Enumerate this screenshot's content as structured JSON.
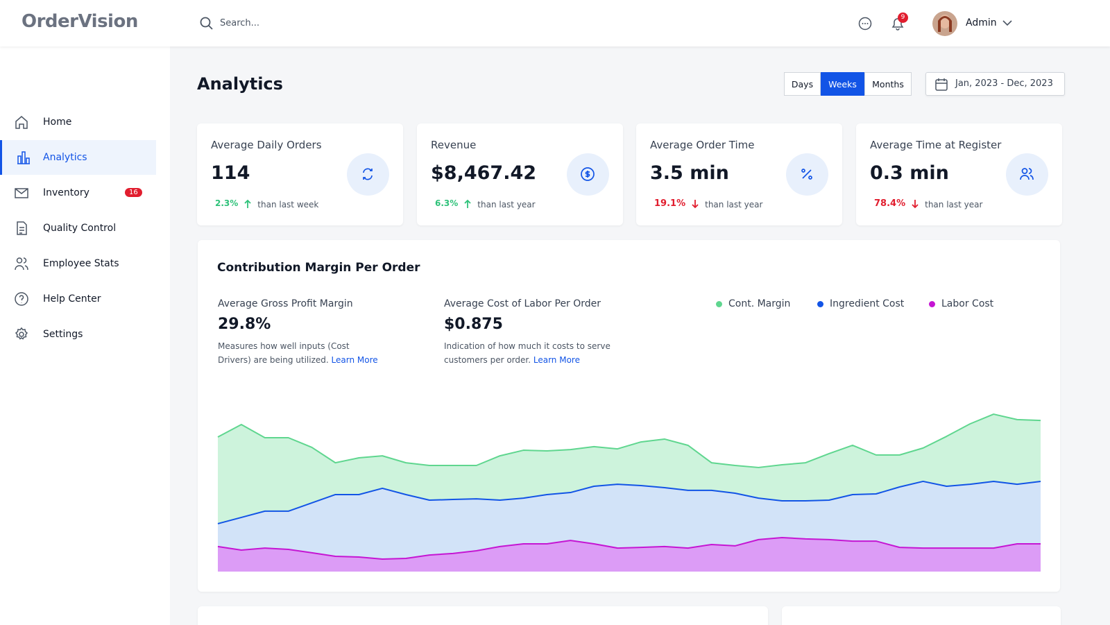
{
  "header": {
    "logo": "OrderVision",
    "search_placeholder": "Search...",
    "notification_count": "9",
    "user": "Admin"
  },
  "sidebar": {
    "items": [
      "Home",
      "Analytics",
      "Inventory",
      "Quality Control",
      "Employee Stats",
      "Help Center",
      "Settings"
    ],
    "active": 1,
    "inventory_badge": "16"
  },
  "page_title": "Analytics",
  "range_tabs": [
    "Days",
    "Weeks",
    "Months"
  ],
  "active_tab": 1,
  "date_range": "Jan, 2023 - Dec, 2023",
  "stats": [
    {
      "label": "Average Daily Orders",
      "value": "114",
      "change": "2.3%",
      "direction": "up",
      "compare": "than last week"
    },
    {
      "label": "Revenue",
      "value": "$8,467.42",
      "change": "6.3%",
      "direction": "up",
      "compare": "than last year"
    },
    {
      "label": "Average Order Time",
      "value": "3.5 min",
      "change": "19.1%",
      "direction": "down",
      "compare": "than last year"
    },
    {
      "label": "Average Time at Register",
      "value": "0.3 min",
      "change": "78.4%",
      "direction": "down",
      "compare": "than last year"
    }
  ],
  "chart_data": {
    "type": "area",
    "title": "Contribution Margin Per Order",
    "summaries": [
      {
        "label": "Average Gross Profit Margin",
        "value": "29.8%",
        "description": "Measures how well inputs (Cost Drivers) are being utilized.",
        "link": "Learn More"
      },
      {
        "label": "Average Cost of Labor Per Order",
        "value": "$0.875",
        "description": "Indication of how much it costs to serve customers per order.",
        "link": "Learn More"
      }
    ],
    "categories": [
      null,
      null,
      null,
      null,
      null,
      null,
      null,
      null,
      null,
      null,
      null,
      null,
      null,
      null,
      null,
      null,
      null,
      null,
      null,
      null,
      null,
      null,
      null,
      null,
      null,
      null,
      null,
      null,
      null,
      null,
      null,
      null,
      null,
      null,
      null,
      null
    ],
    "ylim": [
      0,
      100
    ],
    "series": [
      {
        "name": "Cont. Margin",
        "color": "#5fd68f",
        "area_color": "#cdf3dc",
        "values": [
          79.5,
          86.9,
          79.1,
          79.1,
          73.4,
          64.3,
          67.2,
          68.4,
          64.3,
          62.7,
          62.7,
          62.7,
          68.4,
          71.7,
          71.3,
          72.1,
          73.8,
          72.5,
          76.6,
          78.3,
          74.6,
          64.3,
          62.7,
          61.5,
          63.1,
          64.3,
          69.7,
          74.6,
          68.9,
          68.9,
          73.0,
          79.9,
          87.3,
          93.0,
          89.8,
          89.3
        ]
      },
      {
        "name": "Ingredient Cost",
        "color": "#1254e6",
        "area_color": "#d2e3f8",
        "values": [
          28.3,
          32.0,
          35.7,
          35.7,
          40.6,
          45.5,
          45.5,
          49.2,
          45.5,
          42.2,
          42.6,
          43.0,
          42.2,
          43.4,
          45.5,
          46.7,
          50.4,
          51.6,
          50.8,
          49.6,
          48.0,
          48.0,
          46.3,
          43.4,
          41.8,
          41.8,
          42.2,
          45.5,
          45.9,
          50.0,
          53.3,
          50.4,
          51.6,
          53.3,
          51.6,
          53.3
        ]
      },
      {
        "name": "Labor Cost",
        "color": "#c516d3",
        "area_color": "#dc9cf6",
        "values": [
          14.8,
          12.7,
          13.9,
          13.1,
          11.1,
          9.0,
          8.6,
          7.4,
          7.8,
          9.8,
          10.7,
          12.3,
          14.8,
          16.4,
          16.4,
          18.4,
          16.4,
          13.9,
          14.3,
          14.8,
          13.9,
          16.0,
          15.2,
          18.9,
          20.1,
          19.3,
          18.9,
          18.0,
          18.0,
          14.3,
          13.9,
          13.9,
          13.9,
          13.9,
          16.4,
          16.4
        ]
      }
    ]
  }
}
